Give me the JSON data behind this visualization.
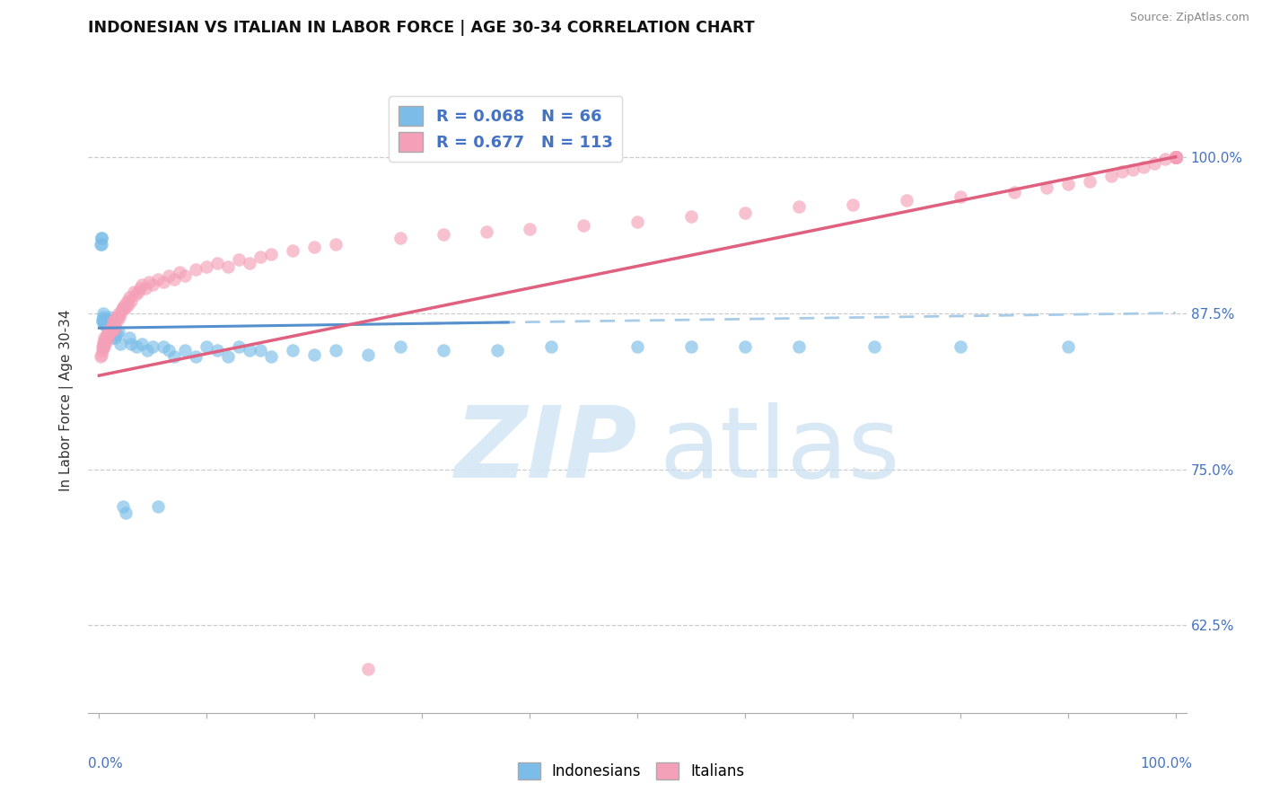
{
  "title": "INDONESIAN VS ITALIAN IN LABOR FORCE | AGE 30-34 CORRELATION CHART",
  "source": "Source: ZipAtlas.com",
  "ylabel": "In Labor Force | Age 30-34",
  "ylim": [
    0.555,
    1.055
  ],
  "xlim": [
    -0.01,
    1.01
  ],
  "R_indonesian": 0.068,
  "N_indonesian": 66,
  "R_italian": 0.677,
  "N_italian": 113,
  "color_indonesian": "#7bbde8",
  "color_italian": "#f4a0b8",
  "color_indonesian_line_solid": "#5590cc",
  "color_italian_line_solid": "#e06080",
  "color_indonesian_line_dashed": "#a8cce8",
  "ytick_positions": [
    0.625,
    0.75,
    0.875,
    1.0
  ],
  "ytick_labels": [
    "62.5%",
    "75.0%",
    "87.5%",
    "100.0%"
  ],
  "ind_x": [
    0.001,
    0.002,
    0.002,
    0.002,
    0.003,
    0.003,
    0.004,
    0.004,
    0.005,
    0.005,
    0.005,
    0.006,
    0.006,
    0.006,
    0.007,
    0.007,
    0.008,
    0.008,
    0.009,
    0.009,
    0.01,
    0.01,
    0.011,
    0.012,
    0.013,
    0.014,
    0.015,
    0.016,
    0.018,
    0.02,
    0.022,
    0.025,
    0.028,
    0.03,
    0.035,
    0.04,
    0.045,
    0.05,
    0.055,
    0.06,
    0.065,
    0.07,
    0.08,
    0.09,
    0.1,
    0.11,
    0.12,
    0.13,
    0.14,
    0.15,
    0.16,
    0.18,
    0.2,
    0.22,
    0.25,
    0.28,
    0.32,
    0.37,
    0.42,
    0.5,
    0.55,
    0.6,
    0.65,
    0.72,
    0.8,
    0.9
  ],
  "ind_y": [
    0.93,
    0.935,
    0.935,
    0.93,
    0.87,
    0.868,
    0.875,
    0.872,
    0.87,
    0.868,
    0.866,
    0.87,
    0.868,
    0.865,
    0.868,
    0.87,
    0.865,
    0.868,
    0.87,
    0.866,
    0.868,
    0.872,
    0.858,
    0.855,
    0.86,
    0.858,
    0.855,
    0.858,
    0.86,
    0.85,
    0.72,
    0.715,
    0.855,
    0.85,
    0.848,
    0.85,
    0.845,
    0.848,
    0.72,
    0.848,
    0.845,
    0.84,
    0.845,
    0.84,
    0.848,
    0.845,
    0.84,
    0.848,
    0.845,
    0.845,
    0.84,
    0.845,
    0.842,
    0.845,
    0.842,
    0.848,
    0.845,
    0.845,
    0.848,
    0.848,
    0.848,
    0.848,
    0.848,
    0.848,
    0.848,
    0.848
  ],
  "ita_x": [
    0.001,
    0.002,
    0.003,
    0.003,
    0.004,
    0.004,
    0.005,
    0.005,
    0.005,
    0.006,
    0.006,
    0.007,
    0.007,
    0.008,
    0.008,
    0.009,
    0.009,
    0.01,
    0.01,
    0.011,
    0.011,
    0.012,
    0.012,
    0.013,
    0.014,
    0.014,
    0.015,
    0.015,
    0.016,
    0.017,
    0.018,
    0.019,
    0.02,
    0.021,
    0.022,
    0.023,
    0.024,
    0.025,
    0.026,
    0.027,
    0.028,
    0.03,
    0.032,
    0.034,
    0.036,
    0.038,
    0.04,
    0.043,
    0.046,
    0.05,
    0.055,
    0.06,
    0.065,
    0.07,
    0.075,
    0.08,
    0.09,
    0.1,
    0.11,
    0.12,
    0.13,
    0.14,
    0.15,
    0.16,
    0.18,
    0.2,
    0.22,
    0.25,
    0.28,
    0.32,
    0.36,
    0.4,
    0.45,
    0.5,
    0.55,
    0.6,
    0.65,
    0.7,
    0.75,
    0.8,
    0.85,
    0.88,
    0.9,
    0.92,
    0.94,
    0.95,
    0.96,
    0.97,
    0.98,
    0.99,
    1.0,
    1.0,
    1.0,
    1.0,
    1.0,
    1.0,
    1.0,
    1.0,
    1.0,
    1.0,
    1.0,
    1.0,
    1.0,
    1.0,
    1.0,
    1.0,
    1.0,
    1.0,
    1.0,
    1.0,
    1.0,
    1.0,
    1.0
  ],
  "ita_y": [
    0.84,
    0.842,
    0.848,
    0.845,
    0.852,
    0.848,
    0.855,
    0.852,
    0.848,
    0.855,
    0.852,
    0.858,
    0.855,
    0.858,
    0.855,
    0.86,
    0.858,
    0.862,
    0.86,
    0.862,
    0.86,
    0.865,
    0.862,
    0.868,
    0.862,
    0.868,
    0.87,
    0.865,
    0.872,
    0.87,
    0.875,
    0.872,
    0.875,
    0.878,
    0.88,
    0.878,
    0.882,
    0.88,
    0.885,
    0.882,
    0.888,
    0.885,
    0.892,
    0.89,
    0.892,
    0.895,
    0.898,
    0.895,
    0.9,
    0.898,
    0.902,
    0.9,
    0.905,
    0.902,
    0.908,
    0.905,
    0.91,
    0.912,
    0.915,
    0.912,
    0.918,
    0.915,
    0.92,
    0.922,
    0.925,
    0.928,
    0.93,
    0.59,
    0.935,
    0.938,
    0.94,
    0.942,
    0.945,
    0.948,
    0.952,
    0.955,
    0.96,
    0.962,
    0.965,
    0.968,
    0.972,
    0.975,
    0.978,
    0.98,
    0.985,
    0.988,
    0.99,
    0.992,
    0.995,
    0.998,
    1.0,
    1.0,
    1.0,
    1.0,
    1.0,
    1.0,
    1.0,
    1.0,
    1.0,
    1.0,
    1.0,
    1.0,
    1.0,
    1.0,
    1.0,
    1.0,
    1.0,
    1.0,
    1.0,
    1.0,
    1.0,
    1.0,
    1.0
  ]
}
